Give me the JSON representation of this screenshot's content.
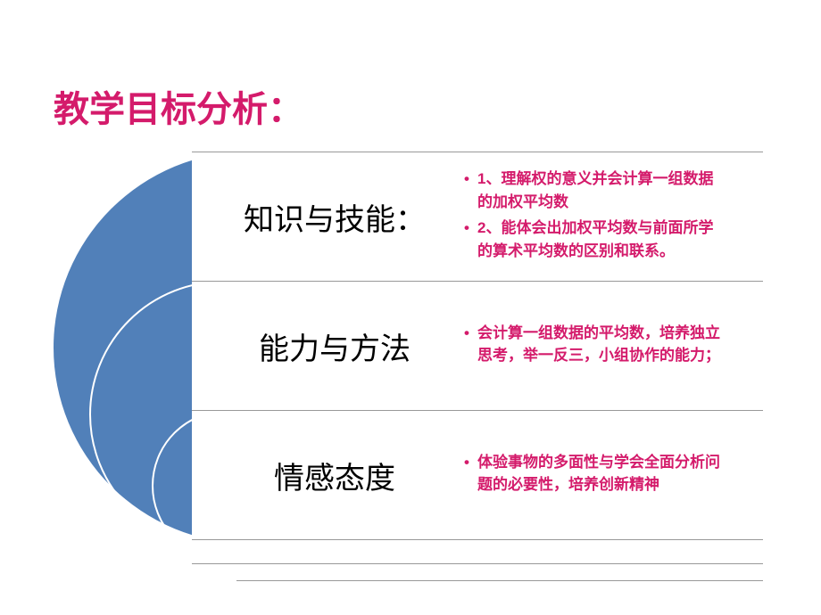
{
  "title": "教学目标分析：",
  "colors": {
    "title_color": "#d41b6b",
    "circle_color": "#5180b9",
    "bullet_color": "#d41b6b",
    "label_color": "#000000",
    "background": "#ffffff",
    "border_color": "#999999"
  },
  "typography": {
    "title_fontsize": 40,
    "label_fontsize": 34,
    "bullet_fontsize": 17
  },
  "rows": [
    {
      "label": "知识与技能：",
      "bullets": [
        "1、理解权的意义并会计算一组数据的加权平均数",
        "2、能体会出加权平均数与前面所学的算术平均数的区别和联系。"
      ]
    },
    {
      "label": "能力与方法",
      "bullets": [
        "会计算一组数据的平均数，培养独立思考，举一反三，小组协作的能力；"
      ]
    },
    {
      "label": "情感态度",
      "bullets": [
        "体验事物的多面性与学会全面分析问题的必要性，培养创新精神"
      ]
    }
  ]
}
